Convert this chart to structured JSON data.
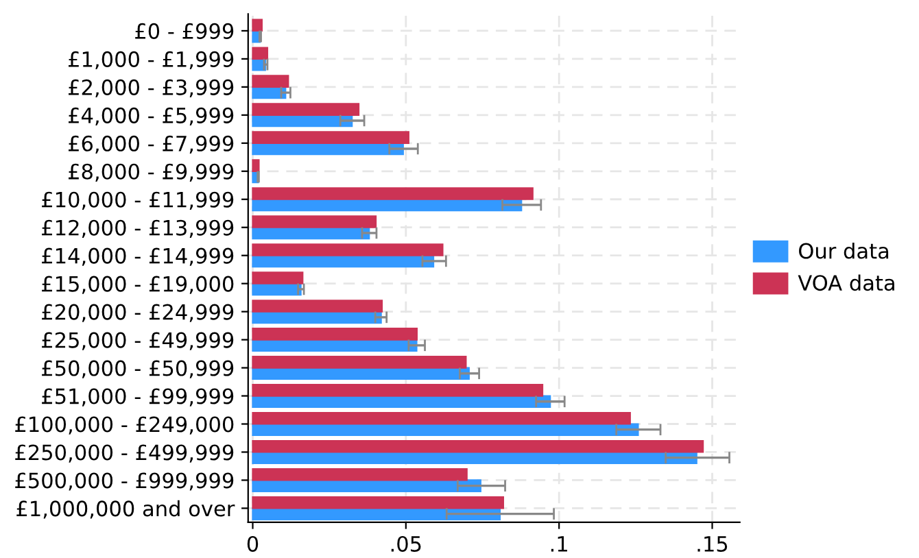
{
  "chart_data": {
    "type": "bar",
    "orientation": "horizontal",
    "categories": [
      "£0 - £999",
      "£1,000 - £1,999",
      "£2,000 - £3,999",
      "£4,000 - £5,999",
      "£6,000 - £7,999",
      "£8,000 - £9,999",
      "£10,000 - £11,999",
      "£12,000 - £13,999",
      "£14,000 - £14,999",
      "£15,000 - £19,000",
      "£20,000 - £24,999",
      "£25,000 - £49,999",
      "£50,000 - £50,999",
      "£51,000 - £99,999",
      "£100,000 - £249,000",
      "£250,000 - £499,999",
      "£500,000 - £999,999",
      "£1,000,000 and over"
    ],
    "series": [
      {
        "name": "Our data",
        "color": "#3399ff",
        "values": [
          0.0024,
          0.0041,
          0.0107,
          0.0324,
          0.0491,
          0.0018,
          0.0877,
          0.038,
          0.059,
          0.0157,
          0.0419,
          0.0535,
          0.0706,
          0.0971,
          0.1258,
          0.1449,
          0.0744,
          0.0807
        ],
        "errors": [
          [
            0.0022,
            0.0027
          ],
          [
            0.0037,
            0.0048
          ],
          [
            0.0093,
            0.0123
          ],
          [
            0.0286,
            0.0364
          ],
          [
            0.0446,
            0.0539
          ],
          [
            0.0016,
            0.002
          ],
          [
            0.0815,
            0.0941
          ],
          [
            0.0357,
            0.0404
          ],
          [
            0.0554,
            0.0631
          ],
          [
            0.0148,
            0.0167
          ],
          [
            0.04,
            0.0437
          ],
          [
            0.0509,
            0.0562
          ],
          [
            0.0676,
            0.0739
          ],
          [
            0.0925,
            0.1018
          ],
          [
            0.1187,
            0.1331
          ],
          [
            0.1348,
            0.1556
          ],
          [
            0.0669,
            0.0824
          ],
          [
            0.0633,
            0.0983
          ]
        ]
      },
      {
        "name": "VOA data",
        "color": "#cc3355",
        "values": [
          0.003,
          0.0048,
          0.0116,
          0.0346,
          0.0509,
          0.002,
          0.0914,
          0.0402,
          0.062,
          0.0163,
          0.0422,
          0.0536,
          0.0696,
          0.0946,
          0.1232,
          0.147,
          0.0699,
          0.0818
        ]
      }
    ],
    "xlim": [
      -0.0015,
      0.159
    ],
    "xticks": [
      0,
      {
        "value": 0.05,
        "label": ".05"
      },
      {
        "value": 0.1,
        "label": ".1"
      },
      {
        "value": 0.15,
        "label": ".15"
      }
    ],
    "grid": true,
    "legend": "right"
  }
}
